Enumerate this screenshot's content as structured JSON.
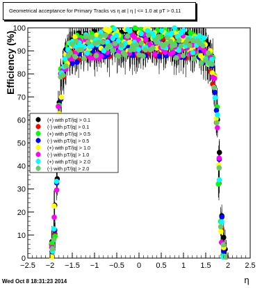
{
  "title": "Geometrical acceptance for Primary Tracks vs   η at | η | <= 1.0 at pT > 0.11",
  "timestamp": "Wed Oct  8 18:31:23 2014",
  "chart_data": {
    "type": "scatter",
    "xlabel": "η",
    "ylabel": "Efficiency (%)",
    "xlim": [
      -2.5,
      2.5
    ],
    "ylim": [
      0,
      100
    ],
    "x_ticks": [
      "−2.5",
      "−2",
      "−1.5",
      "−1",
      "−0.5",
      "0",
      "0.5",
      "1",
      "1.5",
      "2",
      "2.5"
    ],
    "y_ticks": [
      "0",
      "10",
      "20",
      "30",
      "40",
      "50",
      "60",
      "70",
      "80",
      "90",
      "100"
    ],
    "grid": false,
    "legend_position": "left-middle",
    "series": [
      {
        "name": "(+) with pT/|q| > 0.1",
        "color": "#000000"
      },
      {
        "name": "(-) with pT/|q| > 0.1",
        "color": "#ff0000"
      },
      {
        "name": "(+) with pT/|q| > 0.5",
        "color": "#00ff00"
      },
      {
        "name": "(-) with pT/|q| > 0.5",
        "color": "#0000ff"
      },
      {
        "name": "(+) with pT/|q| > 1.0",
        "color": "#ffff00"
      },
      {
        "name": "(-) with pT/|q| > 1.0",
        "color": "#ff00ff"
      },
      {
        "name": "(+) with pT/|q| > 2.0",
        "color": "#00ffff"
      },
      {
        "name": "(-) with pT/|q| > 2.0",
        "color": "#66cc66"
      }
    ],
    "eta_bins": [
      -1.95,
      -1.9,
      -1.85,
      -1.8,
      -1.75,
      -1.7,
      -1.65,
      -1.6,
      -1.55,
      -1.5,
      -1.45,
      -1.4,
      -1.35,
      -1.3,
      -1.25,
      -1.2,
      -1.15,
      -1.1,
      -1.05,
      -1.0,
      -0.95,
      -0.9,
      -0.85,
      -0.8,
      -0.75,
      -0.7,
      -0.65,
      -0.6,
      -0.55,
      -0.5,
      -0.45,
      -0.4,
      -0.35,
      -0.3,
      -0.25,
      -0.2,
      -0.15,
      -0.1,
      -0.05,
      0.0,
      0.05,
      0.1,
      0.15,
      0.2,
      0.25,
      0.3,
      0.35,
      0.4,
      0.45,
      0.5,
      0.55,
      0.6,
      0.65,
      0.7,
      0.75,
      0.8,
      0.85,
      0.9,
      0.95,
      1.0,
      1.05,
      1.1,
      1.15,
      1.2,
      1.25,
      1.3,
      1.35,
      1.4,
      1.45,
      1.5,
      1.55,
      1.6,
      1.65,
      1.7,
      1.75,
      1.8,
      1.85,
      1.9,
      1.95
    ],
    "efficiency_profile": [
      4,
      15,
      38,
      62,
      75,
      82,
      86,
      88,
      89,
      90,
      91,
      91,
      92,
      92,
      92,
      93,
      93,
      93,
      93,
      93,
      93,
      93,
      94,
      94,
      94,
      94,
      94,
      94,
      94,
      94,
      94,
      94,
      94,
      94,
      94,
      94,
      94,
      94,
      94,
      94,
      94,
      94,
      94,
      94,
      94,
      94,
      94,
      94,
      94,
      94,
      94,
      94,
      94,
      94,
      94,
      94,
      93,
      93,
      93,
      93,
      93,
      93,
      93,
      92,
      92,
      92,
      91,
      91,
      90,
      89,
      88,
      86,
      82,
      75,
      62,
      38,
      15,
      4,
      2
    ]
  }
}
